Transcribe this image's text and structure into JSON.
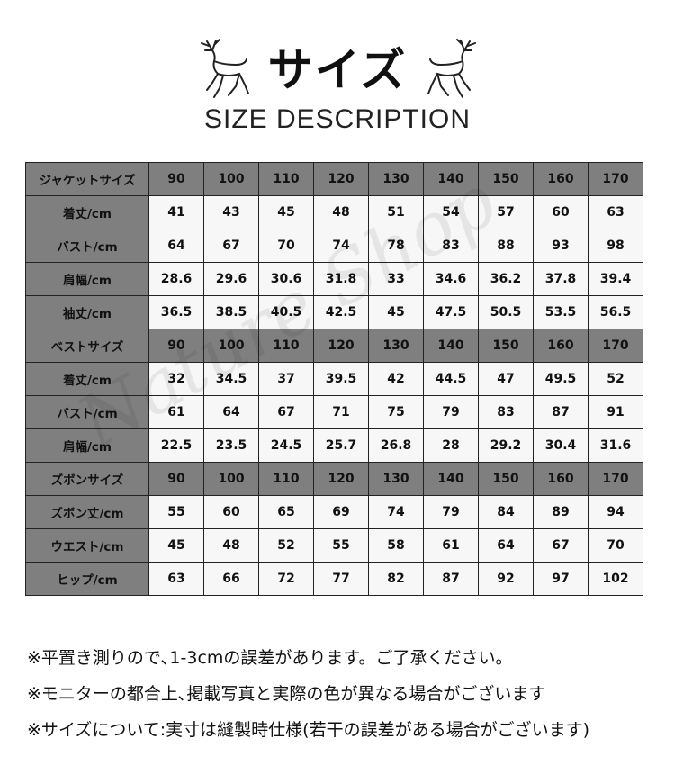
{
  "header": {
    "title": "サイズ",
    "subtitle": "SIZE DESCRIPTION",
    "icon": "deer-icon"
  },
  "watermark": "Nature Shop",
  "table": {
    "rows": [
      {
        "label": "ジャケットサイズ",
        "header": true,
        "values": [
          "90",
          "100",
          "110",
          "120",
          "130",
          "140",
          "150",
          "160",
          "170"
        ]
      },
      {
        "label": "着丈/cm",
        "values": [
          "41",
          "43",
          "45",
          "48",
          "51",
          "54",
          "57",
          "60",
          "63"
        ]
      },
      {
        "label": "バスト/cm",
        "values": [
          "64",
          "67",
          "70",
          "74",
          "78",
          "83",
          "88",
          "93",
          "98"
        ]
      },
      {
        "label": "肩幅/cm",
        "values": [
          "28.6",
          "29.6",
          "30.6",
          "31.8",
          "33",
          "34.6",
          "36.2",
          "37.8",
          "39.4"
        ]
      },
      {
        "label": "袖丈/cm",
        "values": [
          "36.5",
          "38.5",
          "40.5",
          "42.5",
          "45",
          "47.5",
          "50.5",
          "53.5",
          "56.5"
        ]
      },
      {
        "label": "ベストサイズ",
        "header": true,
        "values": [
          "90",
          "100",
          "110",
          "120",
          "130",
          "140",
          "150",
          "160",
          "170"
        ]
      },
      {
        "label": "着丈/cm",
        "values": [
          "32",
          "34.5",
          "37",
          "39.5",
          "42",
          "44.5",
          "47",
          "49.5",
          "52"
        ]
      },
      {
        "label": "バスト/cm",
        "values": [
          "61",
          "64",
          "67",
          "71",
          "75",
          "79",
          "83",
          "87",
          "91"
        ]
      },
      {
        "label": "肩幅/cm",
        "values": [
          "22.5",
          "23.5",
          "24.5",
          "25.7",
          "26.8",
          "28",
          "29.2",
          "30.4",
          "31.6"
        ]
      },
      {
        "label": "ズボンサイズ",
        "header": true,
        "values": [
          "90",
          "100",
          "110",
          "120",
          "130",
          "140",
          "150",
          "160",
          "170"
        ]
      },
      {
        "label": "ズボン丈/cm",
        "values": [
          "55",
          "60",
          "65",
          "69",
          "74",
          "79",
          "84",
          "89",
          "94"
        ]
      },
      {
        "label": "ウエスト/cm",
        "values": [
          "45",
          "48",
          "52",
          "55",
          "58",
          "61",
          "64",
          "67",
          "70"
        ]
      },
      {
        "label": "ヒップ/cm",
        "values": [
          "63",
          "66",
          "72",
          "77",
          "82",
          "87",
          "92",
          "97",
          "102"
        ]
      }
    ]
  },
  "notes": [
    "※平置き測りので､1-3cmの誤差があります。ご了承ください。",
    "※モニターの都合上､掲載写真と実際の色が異なる場合がございます",
    "※サイズについて:実寸は縫製時仕様(若干の誤差がある場合がございます)"
  ],
  "colors": {
    "header_cell": "#7f7f7f",
    "data_cell": "#f7f7f7",
    "border": "#222222"
  }
}
